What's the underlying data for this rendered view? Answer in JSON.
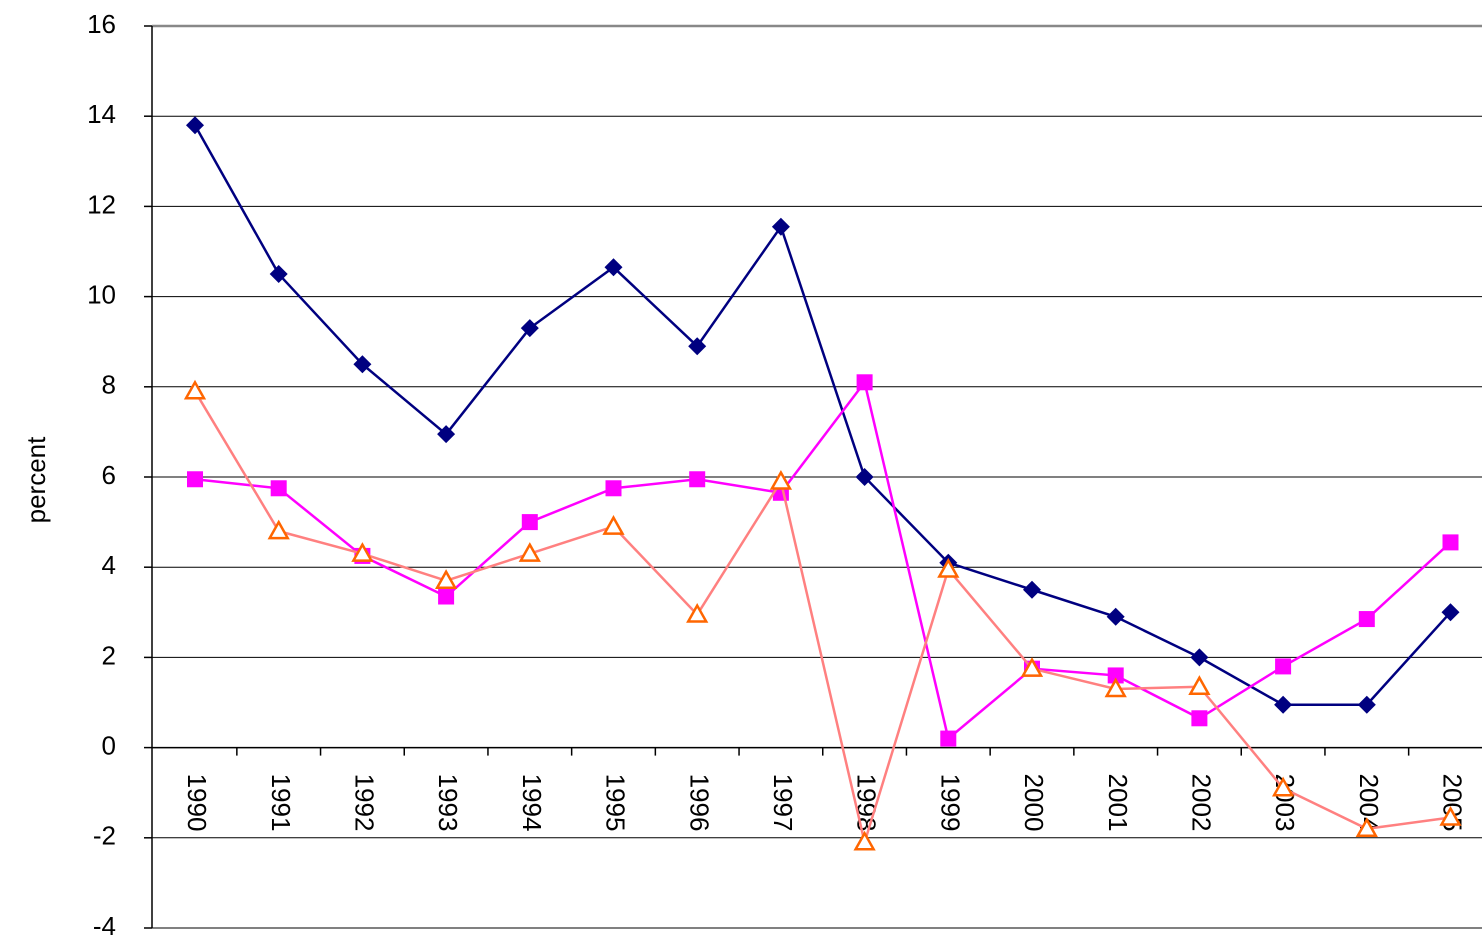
{
  "chart_data": {
    "type": "line",
    "y_label": "percent",
    "categories": [
      "1990",
      "1991",
      "1992",
      "1993",
      "1994",
      "1995",
      "1996",
      "1997",
      "1998",
      "1999",
      "2000",
      "2001",
      "2002",
      "2003",
      "2004",
      "2005"
    ],
    "series": [
      {
        "color": "#000080",
        "marker": "diamond",
        "marker_color": "#000080",
        "values": [
          13.8,
          10.5,
          8.5,
          6.95,
          9.3,
          10.65,
          8.9,
          11.55,
          6.0,
          4.1,
          3.5,
          2.9,
          2.0,
          0.95,
          0.95,
          3.0
        ]
      },
      {
        "color": "#ff00ff",
        "marker": "square",
        "marker_color": "#ff00ff",
        "values": [
          5.95,
          5.75,
          4.25,
          3.35,
          5.0,
          5.75,
          5.95,
          5.65,
          8.1,
          0.2,
          1.75,
          1.6,
          0.65,
          1.8,
          2.85,
          4.55
        ]
      },
      {
        "color": "#ff8080",
        "marker": "triangle",
        "marker_color": "#ff6600",
        "values": [
          7.9,
          4.8,
          4.3,
          3.7,
          4.3,
          4.9,
          2.95,
          5.9,
          -2.1,
          3.95,
          1.75,
          1.3,
          1.35,
          -0.9,
          -1.8,
          -1.55
        ]
      }
    ],
    "ylim": [
      -4,
      16
    ],
    "yticks": [
      -4,
      -2,
      0,
      2,
      4,
      6,
      8,
      10,
      12,
      14,
      16
    ],
    "grid": true
  }
}
